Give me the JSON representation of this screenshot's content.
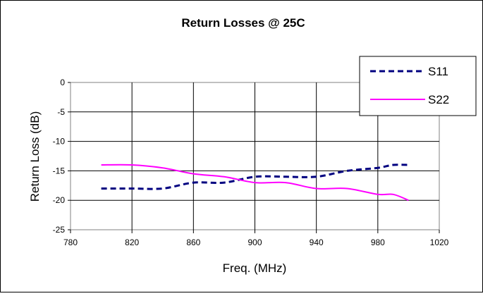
{
  "chart_data": {
    "type": "line",
    "title": "Return Losses @ 25C",
    "xlabel": "Freq. (MHz)",
    "ylabel": "Return Loss (dB)",
    "xlim": [
      780,
      1020
    ],
    "ylim": [
      -25,
      0
    ],
    "x_ticks": [
      780,
      820,
      860,
      900,
      940,
      980,
      1020
    ],
    "y_ticks": [
      0,
      -5,
      -10,
      -15,
      -20,
      -25
    ],
    "grid": true,
    "legend_position": "top-right",
    "series": [
      {
        "name": "S11",
        "color": "#000080",
        "style": "dashed",
        "x": [
          800,
          820,
          840,
          860,
          880,
          900,
          920,
          940,
          960,
          980,
          990,
          1000
        ],
        "y": [
          -18,
          -18,
          -18,
          -17,
          -17,
          -16,
          -16,
          -16,
          -15,
          -14.5,
          -14,
          -14
        ]
      },
      {
        "name": "S22",
        "color": "#ff00ff",
        "style": "solid",
        "x": [
          800,
          820,
          840,
          860,
          880,
          900,
          920,
          940,
          960,
          980,
          990,
          1000
        ],
        "y": [
          -14,
          -14,
          -14.5,
          -15.5,
          -16,
          -17,
          -17,
          -18,
          -18,
          -19,
          -19,
          -20
        ]
      }
    ]
  }
}
